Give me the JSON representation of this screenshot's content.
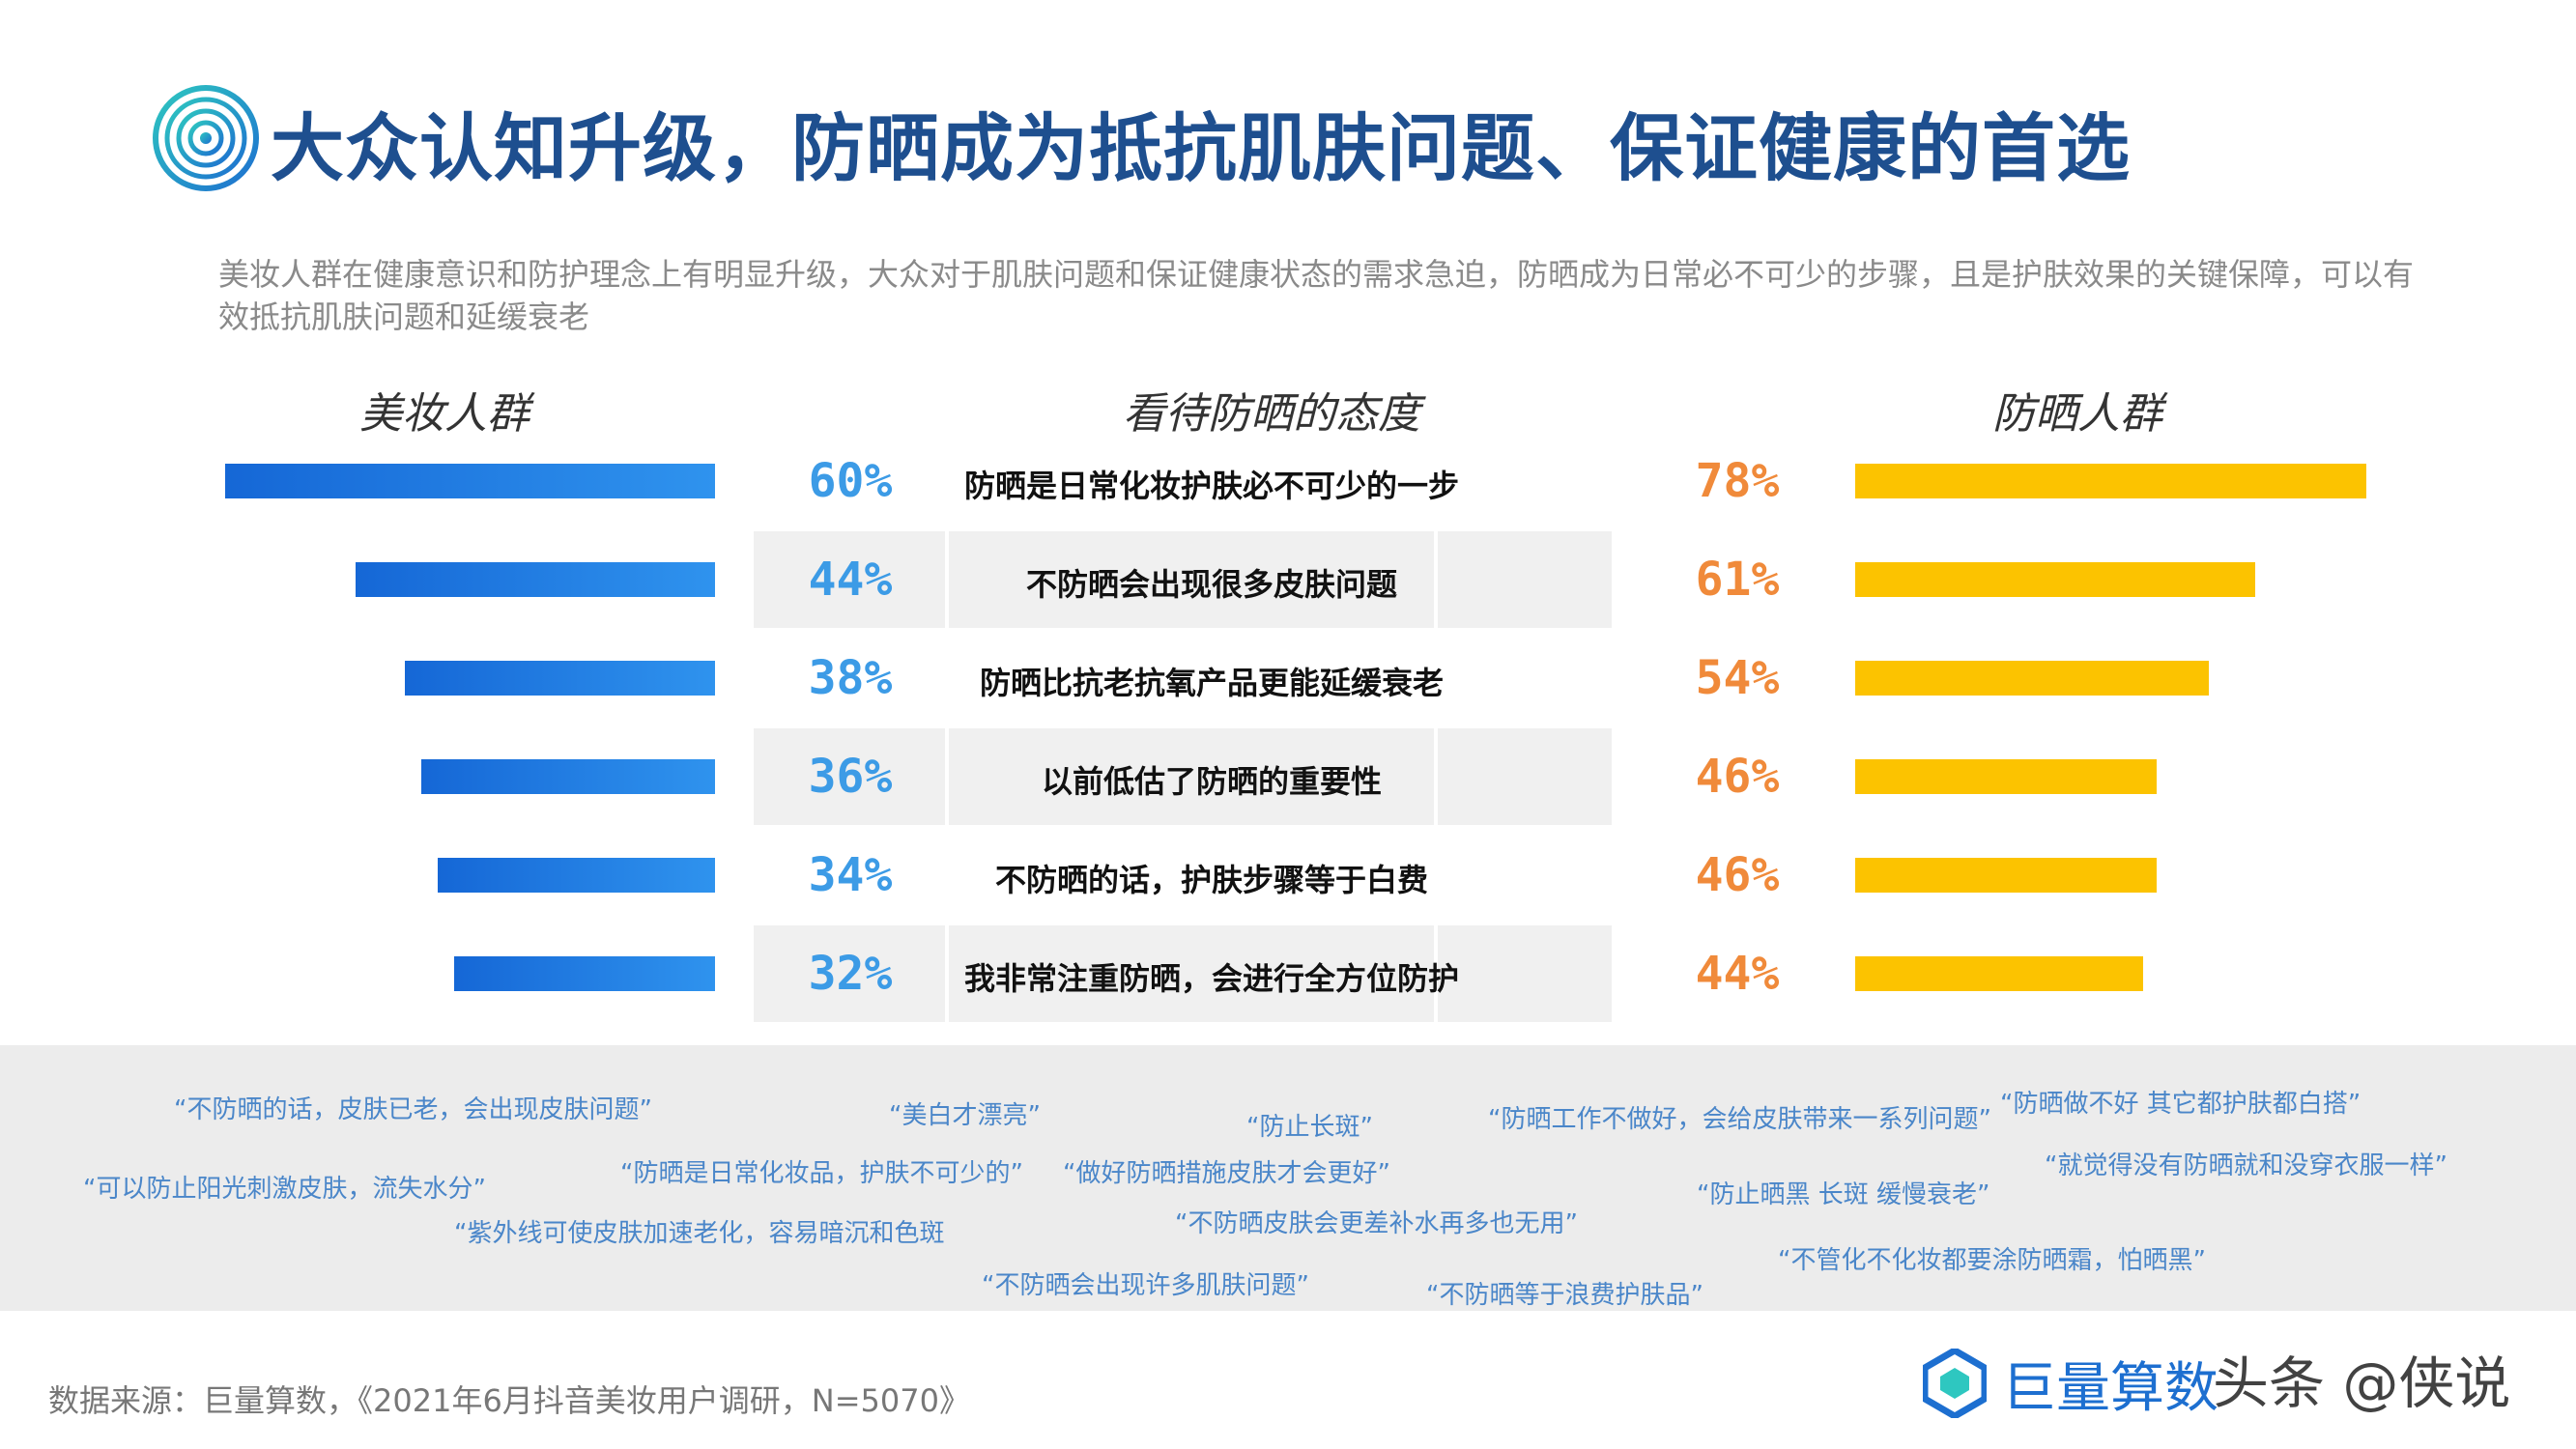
{
  "header": {
    "title": "大众认知升级，防晒成为抵抗肌肤问题、保证健康的首选",
    "subtitle": "美妆人群在健康意识和防护理念上有明显升级，大众对于肌肤问题和保证健康状态的需求急迫，防晒成为日常必不可少的步骤，且是护肤效果的关键保障，可以有效抵抗肌肤问题和延缓衰老"
  },
  "columns": {
    "left": "美妆人群",
    "middle": "看待防晒的态度",
    "right": "防晒人群"
  },
  "colors": {
    "left_bar": "#1567d6",
    "left_pct": "#3c9be6",
    "right_bar": "#fcc300",
    "right_pct": "#f08a3a",
    "title": "#1e4f8f"
  },
  "chart_data": {
    "type": "bar",
    "categories": [
      "防晒是日常化妆护肤必不可少的一步",
      "不防晒会出现很多皮肤问题",
      "防晒比抗老抗氧产品更能延缓衰老",
      "以前低估了防晒的重要性",
      "不防晒的话，护肤步骤等于白费",
      "我非常注重防晒，会进行全方位防护"
    ],
    "series": [
      {
        "name": "美妆人群",
        "values": [
          60,
          44,
          38,
          36,
          34,
          32
        ],
        "labels": [
          "60%",
          "44%",
          "38%",
          "36%",
          "34%",
          "32%"
        ]
      },
      {
        "name": "防晒人群",
        "values": [
          78,
          61,
          54,
          46,
          46,
          44
        ],
        "labels": [
          "78%",
          "61%",
          "54%",
          "46%",
          "46%",
          "44%"
        ]
      }
    ],
    "orientation": "horizontal-butterfly"
  },
  "quotes": [
    "“不防晒的话，皮肤已老，会出现皮肤问题”",
    "“美白才漂亮”",
    "“防止长斑”",
    "“防晒工作不做好，会给皮肤带来一系列问题”",
    "“防晒做不好 其它都护肤都白搭”",
    "“可以防止阳光刺激皮肤，流失水分”",
    "“防晒是日常化妆品，护肤不可少的”",
    "“做好防晒措施皮肤才会更好”",
    "“防止晒黑 长斑 缓慢衰老”",
    "“就觉得没有防晒就和没穿衣服一样”",
    "“紫外线可使皮肤加速老化，容易暗沉和色斑",
    "“不防晒皮肤会更差补水再多也无用”",
    "“不管化不化妆都要涂防晒霜，怕晒黑”",
    "“不防晒会出现许多肌肤问题”",
    "“不防晒等于浪费护肤品”"
  ],
  "footer": {
    "source": "数据来源：巨量算数，《2021年6月抖音美妆用户调研，N=5070》",
    "brand": "巨量算数",
    "watermark": "头条 @侠说"
  }
}
